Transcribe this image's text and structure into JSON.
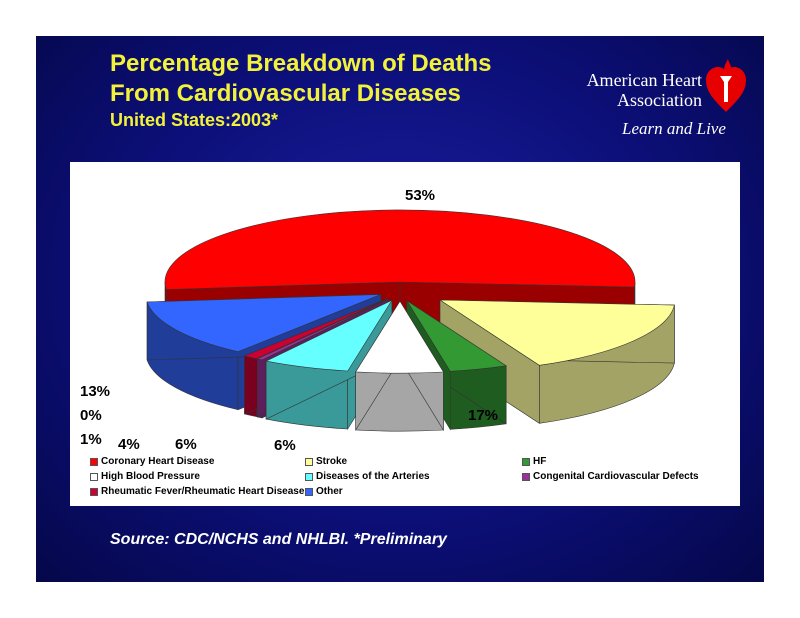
{
  "title": {
    "line1": "Percentage Breakdown of Deaths",
    "line2": "From Cardiovascular Diseases",
    "line3": "United States:2003*"
  },
  "logo": {
    "name_line1": "American Heart",
    "name_line2": "Association",
    "tagline": "Learn and Live"
  },
  "source": "Source: CDC/NCHS and NHLBI. *Preliminary",
  "colors": {
    "slide_background": "#0c0f78",
    "title": "#f2f23a",
    "chart_panel": "#ffffff"
  },
  "chart_data": {
    "type": "pie",
    "style": "3d-exploded",
    "legend_position": "bottom",
    "slices": [
      {
        "name": "Coronary Heart Disease",
        "value": 53,
        "label": "53%",
        "color": "#ff0000",
        "side_color": "#9a0000"
      },
      {
        "name": "Stroke",
        "value": 17,
        "label": "17%",
        "color": "#ffff99",
        "side_color": "#a3a366"
      },
      {
        "name": "HF",
        "value": 4,
        "label": "4%",
        "color": "#339933",
        "side_color": "#1f5c1f"
      },
      {
        "name": "High Blood Pressure",
        "value": 6,
        "label": "6%",
        "color": "#ffffff",
        "side_color": "#a6a6a6"
      },
      {
        "name": "Diseases of the Arteries",
        "value": 6,
        "label": "6%",
        "color": "#66ffff",
        "side_color": "#3a9999"
      },
      {
        "name": "Congenital Cardiovascular Defects",
        "value": 0.4,
        "label": "0%",
        "color": "#993399",
        "side_color": "#5c1f5c"
      },
      {
        "name": "Rheumatic Fever/Rheumatic Heart Disease",
        "value": 1,
        "label": "1%",
        "color": "#cc0033",
        "side_color": "#7a001f"
      },
      {
        "name": "Other",
        "value": 13,
        "label": "13%",
        "color": "#3366ff",
        "side_color": "#1f3d99"
      }
    ]
  }
}
